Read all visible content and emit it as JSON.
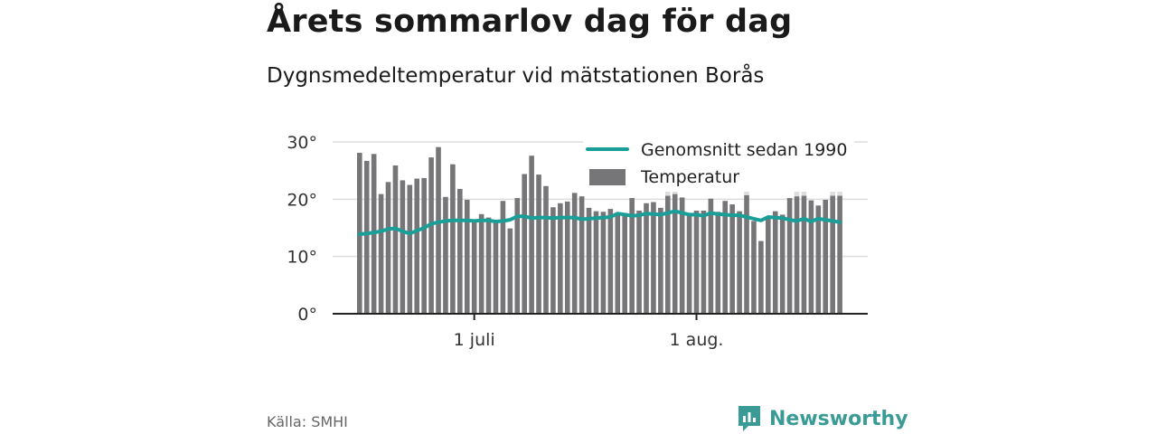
{
  "header": {
    "title": "Årets sommarlov dag för dag",
    "subtitle": "Dygnsmedeltemperatur vid mätstationen Borås"
  },
  "footer": {
    "source": "Källa: SMHI",
    "brand": "Newsworthy",
    "brand_icon": "newsworthy-logo-icon"
  },
  "colors": {
    "bars": "#767578",
    "bars_light": "#dedede",
    "average_line": "#1a9e98",
    "brand": "#3a9a96"
  },
  "chart_data": {
    "type": "bar",
    "legend": {
      "placement": "top-right",
      "items": [
        "Genomsnitt sedan 1990",
        "Temperatur"
      ]
    },
    "y_ticks": [
      "0°",
      "10°",
      "20°",
      "30°"
    ],
    "x_ticks": [
      "1 juli",
      "1 aug."
    ],
    "ylim": [
      0,
      30
    ],
    "grid": true,
    "x": [
      "06-15",
      "06-16",
      "06-17",
      "06-18",
      "06-19",
      "06-20",
      "06-21",
      "06-22",
      "06-23",
      "06-24",
      "06-25",
      "06-26",
      "06-27",
      "06-28",
      "06-29",
      "06-30",
      "07-01",
      "07-02",
      "07-03",
      "07-04",
      "07-05",
      "07-06",
      "07-07",
      "07-08",
      "07-09",
      "07-10",
      "07-11",
      "07-12",
      "07-13",
      "07-14",
      "07-15",
      "07-16",
      "07-17",
      "07-18",
      "07-19",
      "07-20",
      "07-21",
      "07-22",
      "07-23",
      "07-24",
      "07-25",
      "07-26",
      "07-27",
      "07-28",
      "07-29",
      "07-30",
      "07-31",
      "08-01",
      "08-02",
      "08-03",
      "08-04",
      "08-05",
      "08-06",
      "08-07",
      "08-08",
      "08-09",
      "08-10",
      "08-11",
      "08-12",
      "08-13",
      "08-14",
      "08-15",
      "08-16",
      "08-17",
      "08-18",
      "08-19",
      "08-20",
      "08-21"
    ],
    "series": [
      {
        "name": "Temperatur",
        "values": [
          28.1,
          26.7,
          27.9,
          20.9,
          23.0,
          25.9,
          23.3,
          22.5,
          23.6,
          23.7,
          27.3,
          29.1,
          20.4,
          26.1,
          21.8,
          19.9,
          16.2,
          17.4,
          16.8,
          16.1,
          19.7,
          14.9,
          20.2,
          24.4,
          27.6,
          24.3,
          22.3,
          18.6,
          19.3,
          19.6,
          21.1,
          20.5,
          18.5,
          17.9,
          17.8,
          18.3,
          17.7,
          17.6,
          20.2,
          18.0,
          19.3,
          19.5,
          18.5,
          20.6,
          20.9,
          20.3,
          17.5,
          18.0,
          18.0,
          20.1,
          17.8,
          19.7,
          19.1,
          17.9,
          20.7,
          16.2,
          12.7,
          16.8,
          17.9,
          17.3,
          20.2,
          20.5,
          20.6,
          19.8,
          18.9,
          19.9,
          20.6,
          20.6
        ],
        "faded_extra": [
          0,
          0,
          0,
          0,
          0,
          0,
          0,
          0,
          0,
          0,
          0,
          0,
          0,
          0,
          0,
          0,
          0,
          0,
          0,
          0,
          0,
          0,
          0,
          0,
          0,
          0,
          0,
          0,
          0,
          0,
          0,
          0,
          0,
          0,
          0,
          0,
          0,
          0,
          0,
          0,
          0,
          0,
          0,
          1.0,
          1.2,
          0,
          0,
          0,
          0,
          0,
          0,
          0,
          0,
          0,
          0.8,
          0,
          0,
          0,
          0,
          0,
          0,
          1.8,
          1.5,
          0,
          0,
          0,
          2.8,
          1.3
        ]
      },
      {
        "name": "Genomsnitt sedan 1990",
        "values": [
          13.9,
          14.0,
          14.2,
          14.4,
          14.8,
          14.9,
          14.4,
          14.0,
          14.5,
          15.0,
          15.7,
          16.0,
          16.2,
          16.3,
          16.3,
          16.3,
          16.2,
          16.3,
          16.3,
          16.1,
          16.2,
          16.4,
          17.0,
          17.0,
          16.7,
          16.8,
          16.8,
          16.7,
          16.8,
          16.8,
          16.8,
          16.5,
          16.6,
          16.7,
          16.8,
          16.9,
          17.5,
          17.3,
          17.1,
          17.2,
          17.5,
          17.4,
          17.3,
          17.6,
          17.9,
          17.6,
          17.3,
          17.3,
          17.1,
          17.6,
          17.4,
          17.3,
          17.2,
          17.2,
          16.9,
          16.6,
          16.3,
          16.9,
          16.8,
          16.7,
          16.4,
          16.2,
          16.6,
          16.1,
          16.6,
          16.4,
          16.2,
          16.0
        ]
      }
    ]
  }
}
